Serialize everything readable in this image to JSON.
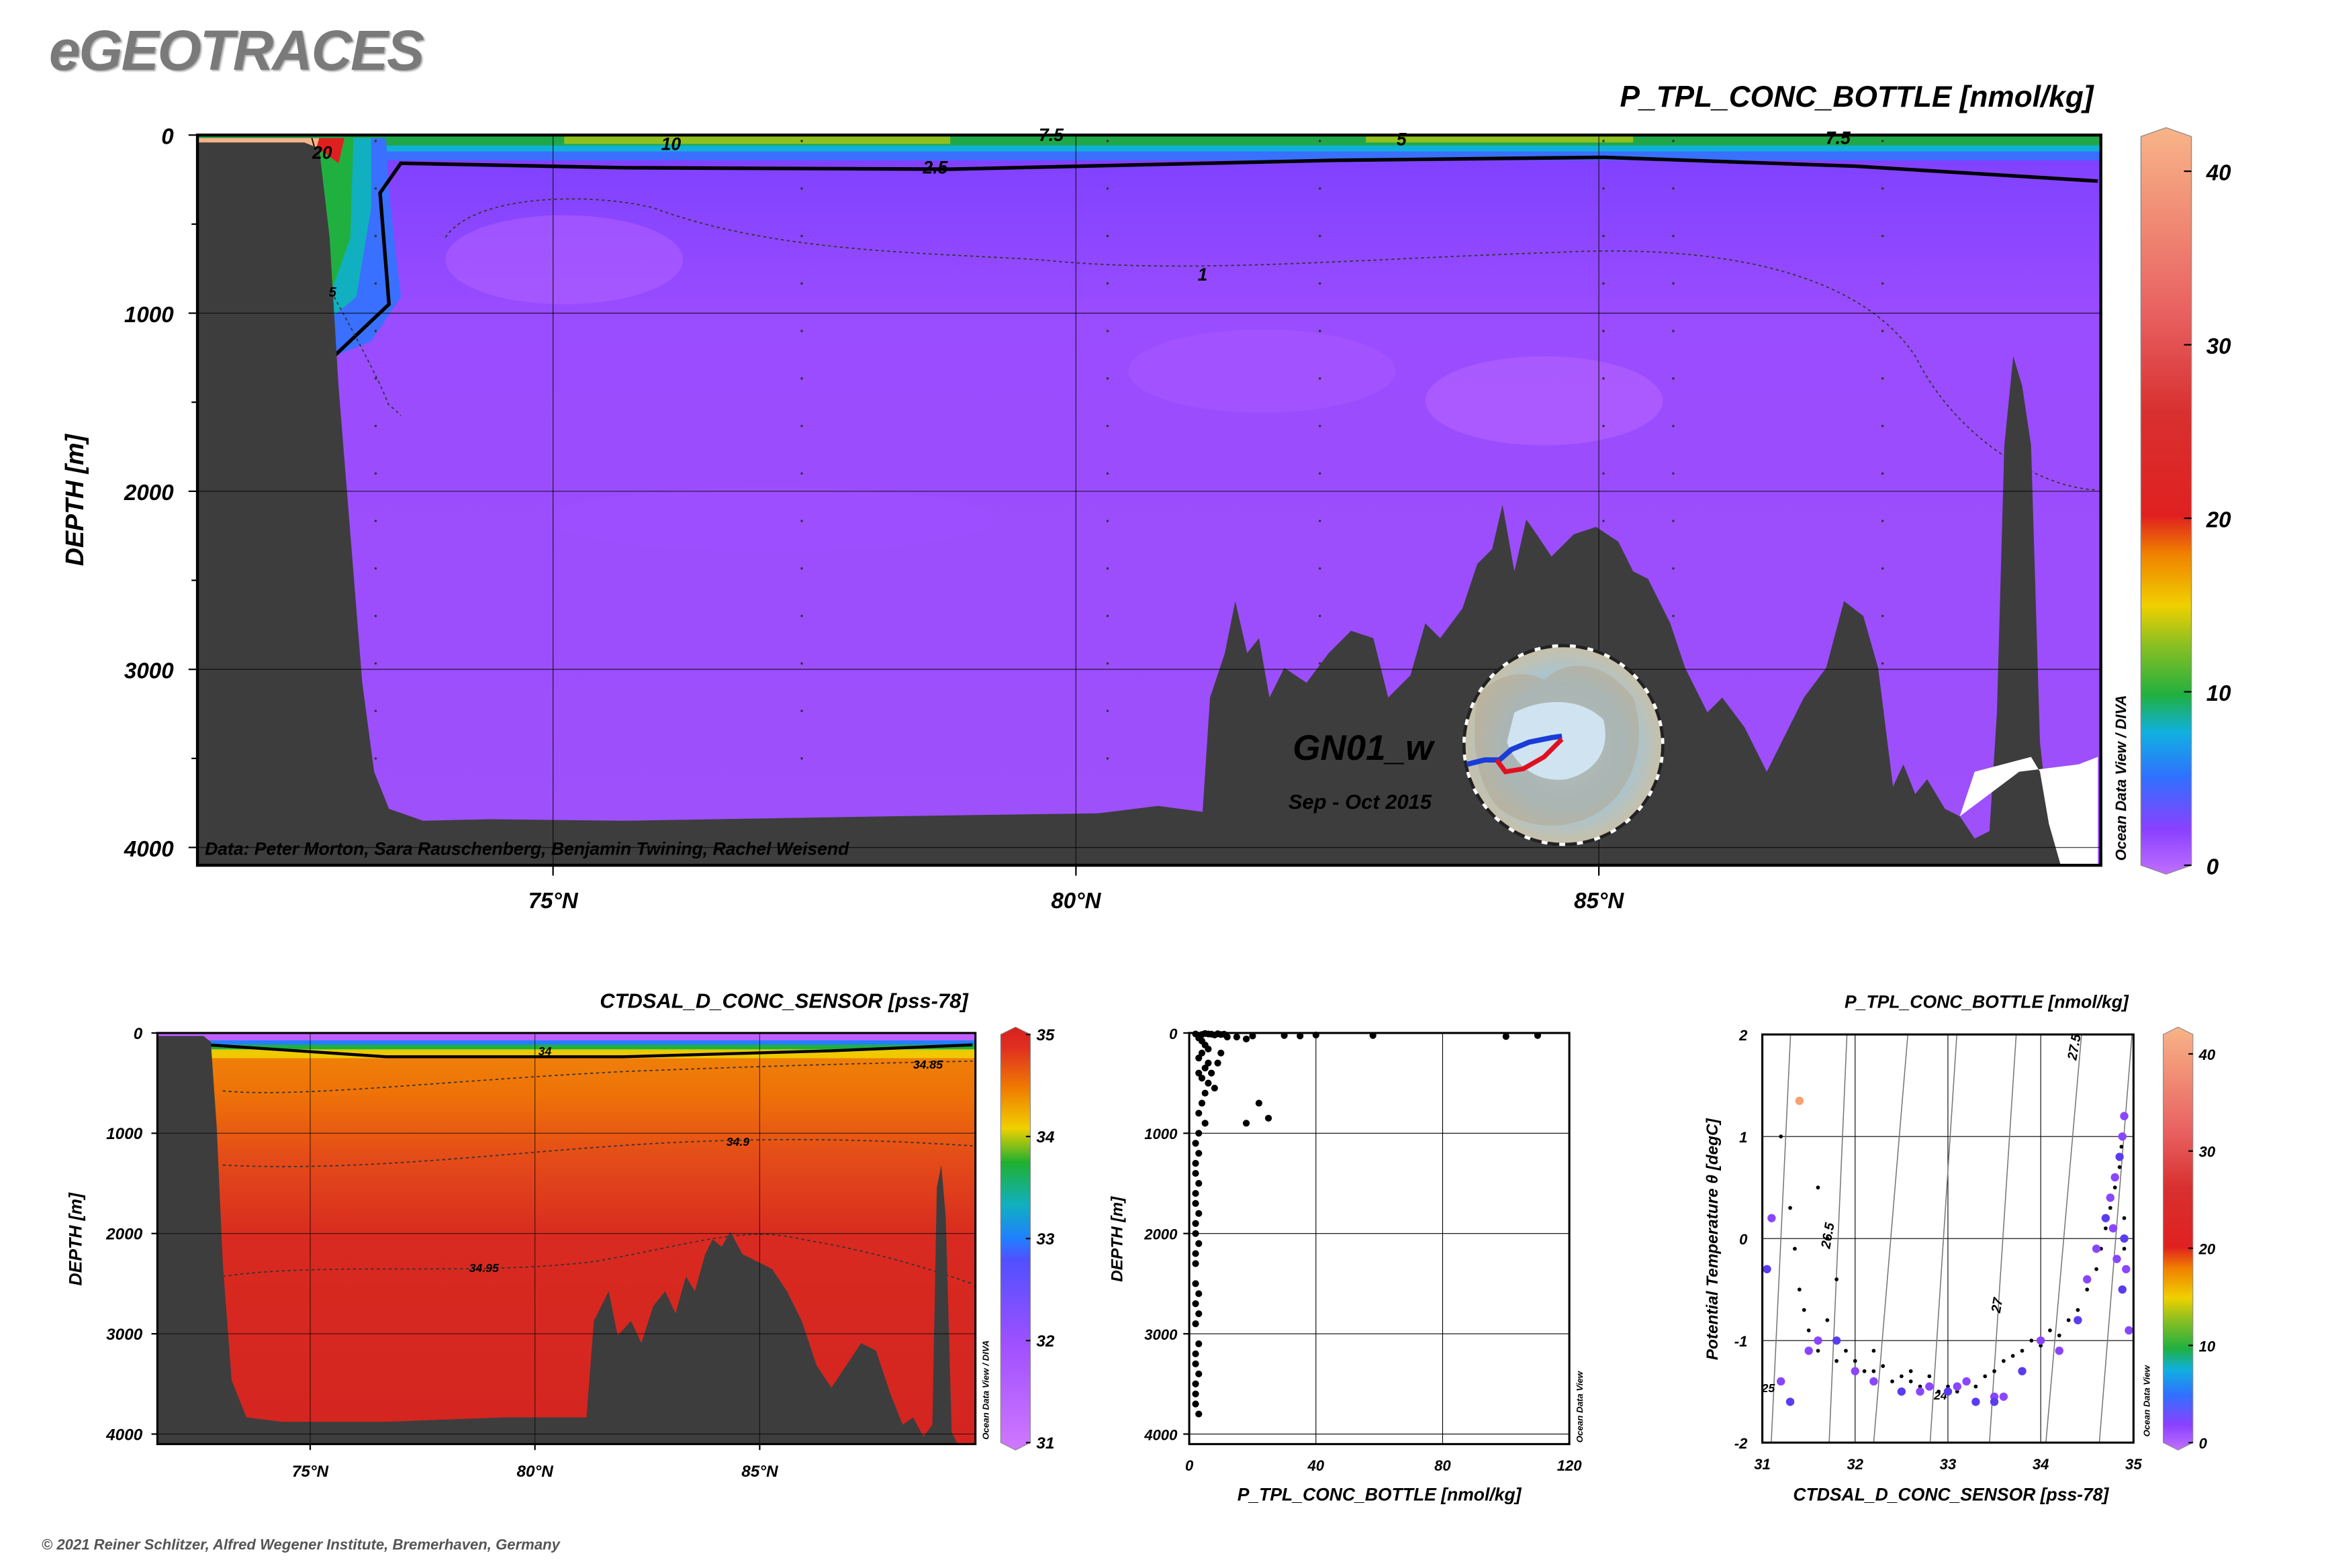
{
  "app_title": "eGEOTRACES",
  "copyright": "© 2021 Reiner Schlitzer, Alfred Wegener Institute, Bremerhaven, Germany",
  "chart_data": [
    {
      "type": "heatmap",
      "title": "P_TPL_CONC_BOTTLE [nmol/kg]",
      "ylabel": "DEPTH [m]",
      "xlabel": "",
      "x_range": [
        71.6,
        89.8
      ],
      "ylim": [
        4100,
        0
      ],
      "y_ticks": [
        "0",
        "1000",
        "2000",
        "3000",
        "4000"
      ],
      "x_ticks": [
        "75°N",
        "80°N",
        "85°N"
      ],
      "colorbar": {
        "ticks": [
          "40",
          "30",
          "20",
          "10",
          "0"
        ],
        "range": [
          0,
          42
        ]
      },
      "contours": [
        "20",
        "10",
        "7.5",
        "5",
        "2.5",
        "1",
        "7.5",
        "5"
      ],
      "section_name": "GN01_w",
      "cruise_dates": "Sep - Oct 2015",
      "credit": "Data: Peter Morton, Sara Rauschenberg, Benjamin Twining, Rachel Weisend",
      "watermark": "Ocean Data View / DIVA",
      "grid": true
    },
    {
      "type": "heatmap",
      "title": "CTDSAL_D_CONC_SENSOR [pss-78]",
      "ylabel": "DEPTH [m]",
      "x_range": [
        71.6,
        89.8
      ],
      "ylim": [
        4100,
        0
      ],
      "y_ticks": [
        "0",
        "1000",
        "2000",
        "3000",
        "4000"
      ],
      "x_ticks": [
        "75°N",
        "80°N",
        "85°N"
      ],
      "colorbar": {
        "ticks": [
          "35",
          "34",
          "33",
          "32",
          "31"
        ],
        "range": [
          31,
          35
        ]
      },
      "contours": [
        "34",
        "34.85",
        "34.9",
        "34.95"
      ],
      "watermark": "Ocean Data View / DIVA",
      "grid": true
    },
    {
      "type": "scatter",
      "xlabel": "P_TPL_CONC_BOTTLE [nmol/kg]",
      "ylabel": "DEPTH [m]",
      "xlim": [
        0,
        120
      ],
      "ylim": [
        4100,
        0
      ],
      "x_ticks": [
        "0",
        "40",
        "80",
        "120"
      ],
      "y_ticks": [
        "0",
        "1000",
        "2000",
        "3000",
        "4000"
      ],
      "watermark": "Ocean Data View",
      "points": [
        [
          2,
          10
        ],
        [
          3,
          30
        ],
        [
          4,
          15
        ],
        [
          5,
          5
        ],
        [
          6,
          10
        ],
        [
          7,
          12
        ],
        [
          8,
          20
        ],
        [
          9,
          8
        ],
        [
          10,
          15
        ],
        [
          11,
          12
        ],
        [
          12,
          40
        ],
        [
          15,
          40
        ],
        [
          18,
          60
        ],
        [
          20,
          30
        ],
        [
          30,
          25
        ],
        [
          35,
          30
        ],
        [
          40,
          20
        ],
        [
          58,
          25
        ],
        [
          100,
          35
        ],
        [
          110,
          25
        ],
        [
          3,
          50
        ],
        [
          4,
          80
        ],
        [
          5,
          120
        ],
        [
          6,
          160
        ],
        [
          4,
          200
        ],
        [
          3,
          250
        ],
        [
          6,
          300
        ],
        [
          5,
          350
        ],
        [
          3,
          400
        ],
        [
          4,
          450
        ],
        [
          6,
          500
        ],
        [
          8,
          550
        ],
        [
          10,
          200
        ],
        [
          9,
          300
        ],
        [
          7,
          400
        ],
        [
          5,
          600
        ],
        [
          4,
          700
        ],
        [
          3,
          800
        ],
        [
          5,
          900
        ],
        [
          18,
          900
        ],
        [
          22,
          700
        ],
        [
          25,
          850
        ],
        [
          3,
          1000
        ],
        [
          2,
          1100
        ],
        [
          3,
          1200
        ],
        [
          2,
          1300
        ],
        [
          2,
          1400
        ],
        [
          3,
          1500
        ],
        [
          2,
          1600
        ],
        [
          2,
          1700
        ],
        [
          3,
          1800
        ],
        [
          2,
          1900
        ],
        [
          2,
          2000
        ],
        [
          3,
          2100
        ],
        [
          2,
          2200
        ],
        [
          2,
          2300
        ],
        [
          2,
          2500
        ],
        [
          3,
          2600
        ],
        [
          2,
          2700
        ],
        [
          3,
          2800
        ],
        [
          2,
          2900
        ],
        [
          3,
          3100
        ],
        [
          2,
          3200
        ],
        [
          2,
          3300
        ],
        [
          3,
          3400
        ],
        [
          2,
          3500
        ],
        [
          2,
          3600
        ],
        [
          2,
          3700
        ],
        [
          3,
          3800
        ]
      ]
    },
    {
      "type": "scatter",
      "title": "P_TPL_CONC_BOTTLE [nmol/kg]",
      "xlabel": "CTDSAL_D_CONC_SENSOR [pss-78]",
      "ylabel": "Potential Temperature θ [degC]",
      "xlim": [
        31,
        35
      ],
      "ylim": [
        -2,
        2
      ],
      "x_ticks": [
        "31",
        "32",
        "33",
        "34",
        "35"
      ],
      "y_ticks": [
        "2",
        "1",
        "0",
        "-1",
        "-2"
      ],
      "isopycnal_labels": [
        "26.5",
        "27",
        "27.5",
        "25",
        "24"
      ],
      "colorbar": {
        "ticks": [
          "40",
          "30",
          "20",
          "10",
          "0"
        ],
        "range": [
          0,
          42
        ]
      },
      "watermark": "Ocean Data View",
      "colored_points": [
        [
          31.05,
          -0.3
        ],
        [
          31.1,
          0.2
        ],
        [
          31.2,
          -1.4
        ],
        [
          31.3,
          -1.6
        ],
        [
          31.5,
          -1.1
        ],
        [
          31.6,
          -1.0
        ],
        [
          31.8,
          -1.0
        ],
        [
          32.0,
          -1.3
        ],
        [
          32.2,
          -1.4
        ],
        [
          32.5,
          -1.5
        ],
        [
          32.7,
          -1.5
        ],
        [
          32.8,
          -1.45
        ],
        [
          33.0,
          -1.5
        ],
        [
          33.1,
          -1.45
        ],
        [
          33.2,
          -1.4
        ],
        [
          33.3,
          -1.6
        ],
        [
          33.5,
          -1.55
        ],
        [
          33.6,
          -1.55
        ],
        [
          33.8,
          -1.3
        ],
        [
          34.0,
          -1.0
        ],
        [
          34.2,
          -1.1
        ],
        [
          34.4,
          -0.8
        ],
        [
          34.5,
          -0.4
        ],
        [
          34.6,
          -0.1
        ],
        [
          34.7,
          0.2
        ],
        [
          34.75,
          0.4
        ],
        [
          34.8,
          0.6
        ],
        [
          34.85,
          0.8
        ],
        [
          34.88,
          1.0
        ],
        [
          34.9,
          1.2
        ],
        [
          34.9,
          0.0
        ],
        [
          34.92,
          -0.3
        ],
        [
          34.95,
          -0.9
        ],
        [
          34.88,
          -0.5
        ],
        [
          34.82,
          -0.2
        ],
        [
          34.78,
          0.1
        ],
        [
          33.5,
          -1.6
        ],
        [
          31.4,
          1.35
        ]
      ],
      "black_points": [
        [
          31.2,
          1.0
        ],
        [
          31.3,
          0.3
        ],
        [
          31.35,
          -0.1
        ],
        [
          31.4,
          -0.5
        ],
        [
          31.45,
          -0.7
        ],
        [
          31.5,
          -0.9
        ],
        [
          31.6,
          -1.1
        ],
        [
          31.7,
          -0.8
        ],
        [
          31.8,
          -1.2
        ],
        [
          31.9,
          -1.1
        ],
        [
          32.0,
          -1.2
        ],
        [
          32.1,
          -1.3
        ],
        [
          32.2,
          -1.3
        ],
        [
          32.3,
          -1.25
        ],
        [
          32.4,
          -1.4
        ],
        [
          32.5,
          -1.35
        ],
        [
          32.6,
          -1.4
        ],
        [
          32.7,
          -1.45
        ],
        [
          32.8,
          -1.35
        ],
        [
          32.9,
          -1.5
        ],
        [
          33.0,
          -1.45
        ],
        [
          33.1,
          -1.5
        ],
        [
          33.2,
          -1.4
        ],
        [
          33.3,
          -1.45
        ],
        [
          33.4,
          -1.35
        ],
        [
          33.5,
          -1.3
        ],
        [
          33.6,
          -1.2
        ],
        [
          33.7,
          -1.15
        ],
        [
          33.8,
          -1.1
        ],
        [
          33.9,
          -1.0
        ],
        [
          34.0,
          -1.05
        ],
        [
          34.1,
          -0.9
        ],
        [
          34.2,
          -0.95
        ],
        [
          34.3,
          -0.8
        ],
        [
          34.4,
          -0.7
        ],
        [
          34.5,
          -0.5
        ],
        [
          34.6,
          -0.3
        ],
        [
          34.65,
          -0.1
        ],
        [
          34.7,
          0.1
        ],
        [
          34.75,
          0.3
        ],
        [
          34.8,
          0.5
        ],
        [
          34.85,
          0.7
        ],
        [
          34.87,
          0.9
        ],
        [
          34.9,
          0.2
        ],
        [
          34.9,
          -0.1
        ],
        [
          31.6,
          0.5
        ],
        [
          31.7,
          0.0
        ],
        [
          31.8,
          -0.4
        ],
        [
          32.2,
          -1.1
        ],
        [
          32.6,
          -1.3
        ]
      ]
    }
  ]
}
